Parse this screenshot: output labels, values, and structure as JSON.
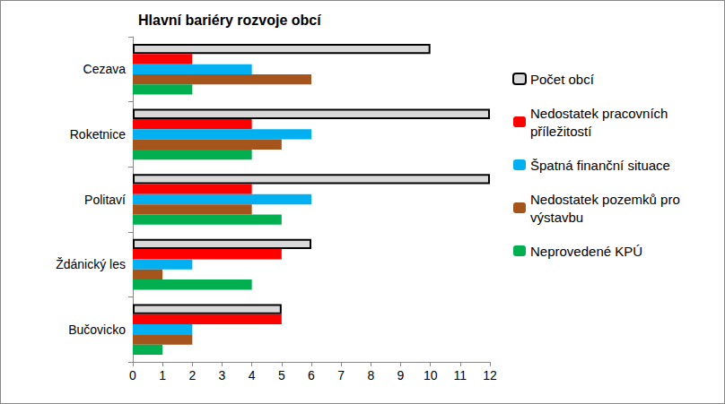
{
  "chart_data": {
    "type": "bar",
    "title": "Hlavní bariéry rozvoje obcí",
    "orientation": "horizontal",
    "categories": [
      "Cezava",
      "Roketnice",
      "Politaví",
      "Ždánický les",
      "Bučovicko"
    ],
    "series": [
      {
        "name": "Počet obcí",
        "color": "#d9d9d9",
        "values": [
          10,
          12,
          12,
          6,
          5
        ]
      },
      {
        "name": "Nedostatek pracovních příležitostí",
        "color": "#ff0000",
        "values": [
          2,
          4,
          4,
          5,
          5
        ]
      },
      {
        "name": "Špatná finanční situace",
        "color": "#00b0f0",
        "values": [
          4,
          6,
          6,
          2,
          2
        ]
      },
      {
        "name": "Nedostatek pozemků pro výstavbu",
        "color": "#a5541c",
        "values": [
          6,
          5,
          4,
          1,
          2
        ]
      },
      {
        "name": "Neprovedené KPÚ",
        "color": "#00b050",
        "values": [
          2,
          4,
          5,
          4,
          1
        ]
      }
    ],
    "xlim": [
      0,
      12
    ],
    "xticks": [
      0,
      1,
      2,
      3,
      4,
      5,
      6,
      7,
      8,
      9,
      10,
      11,
      12
    ],
    "grid": false,
    "legend": "right"
  }
}
